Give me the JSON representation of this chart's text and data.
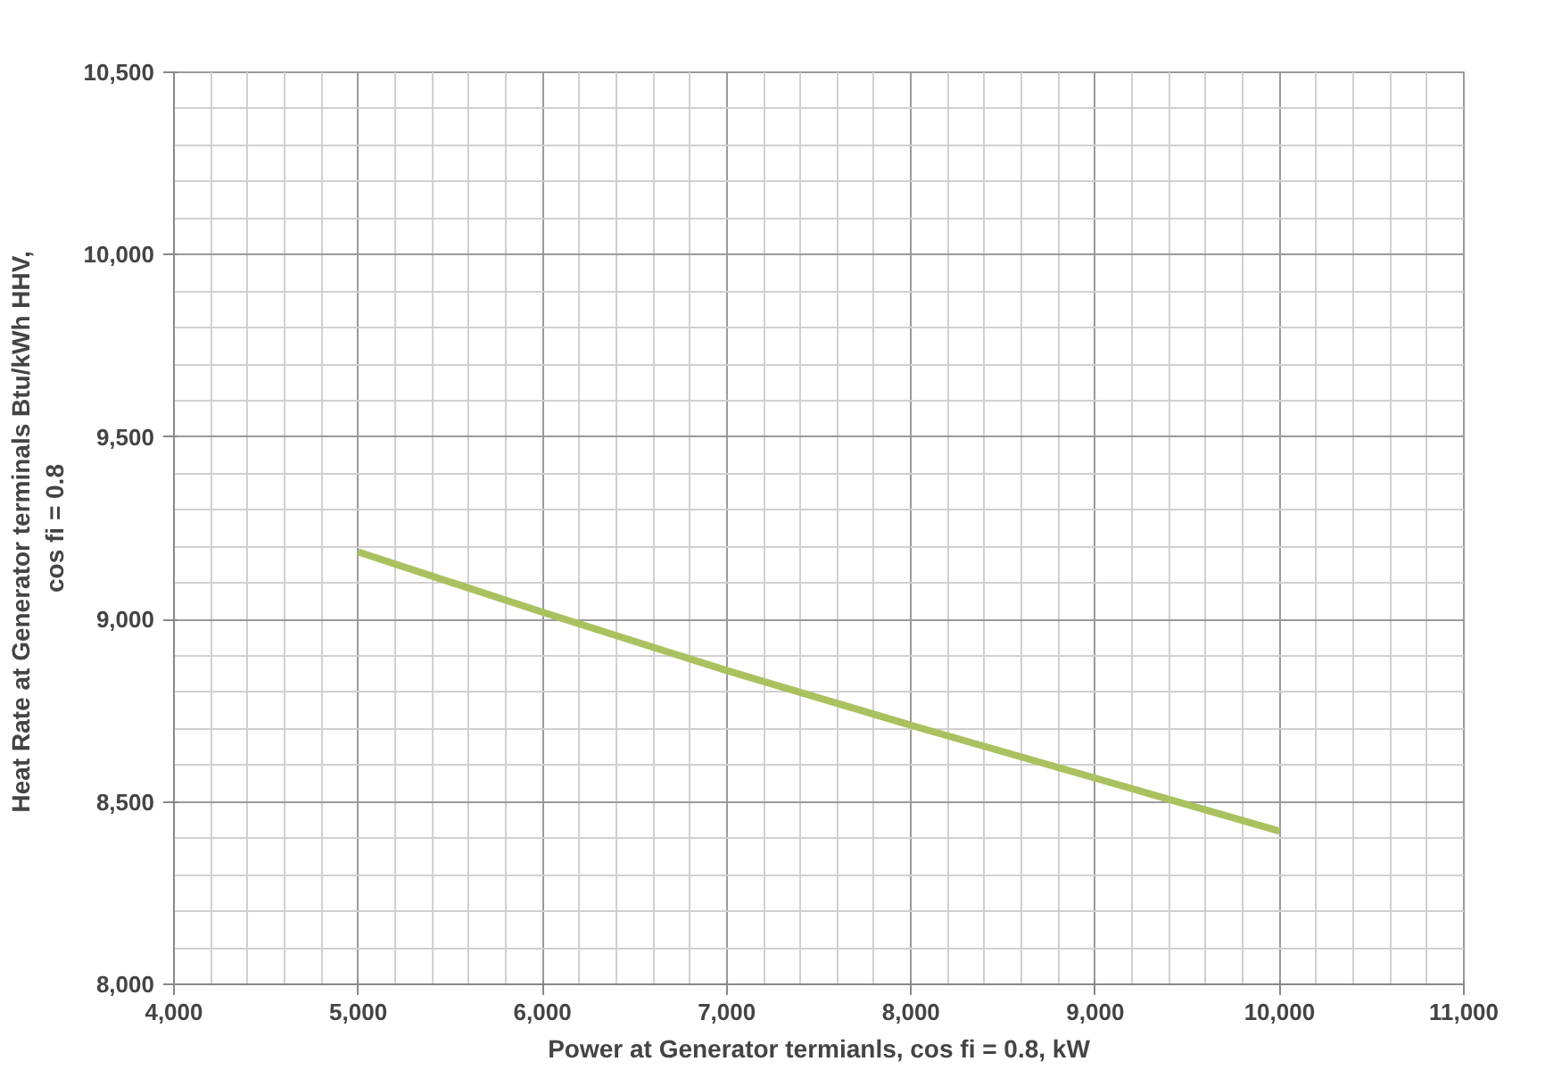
{
  "chart_data": {
    "type": "line",
    "xlabel": "Power at Generator termianls, cos fi = 0.8, kW",
    "ylabel": "Heat Rate at Generator terminals  Btu/kWh HHV,\ncos fi = 0.8",
    "x": [
      5000,
      6000,
      7000,
      8000,
      9000,
      10000
    ],
    "series": [
      {
        "color": "#a9c25f",
        "values": [
          9185,
          9020,
          8860,
          8710,
          8565,
          8420
        ]
      }
    ],
    "xlim": [
      4000,
      11000
    ],
    "xticks": [
      {
        "value": 4000,
        "label": "4,000"
      },
      {
        "value": 5000,
        "label": "5,000"
      },
      {
        "value": 6000,
        "label": "6,000"
      },
      {
        "value": 7000,
        "label": "7,000"
      },
      {
        "value": 8000,
        "label": "8,000"
      },
      {
        "value": 9000,
        "label": "9,000"
      },
      {
        "value": 10000,
        "label": "10,000"
      },
      {
        "value": 11000,
        "label": "11,000"
      }
    ],
    "ylim": [
      8000,
      10500
    ],
    "yticks": [
      {
        "value": 8000,
        "label": "8,000"
      },
      {
        "value": 8500,
        "label": "8,500"
      },
      {
        "value": 9000,
        "label": "9,000"
      },
      {
        "value": 9500,
        "label": "9,500"
      },
      {
        "value": 10000,
        "label": "10,000"
      },
      {
        "value": 10500,
        "label": "10,500"
      }
    ],
    "grid": true,
    "marker": "none",
    "line_style": "solid"
  }
}
